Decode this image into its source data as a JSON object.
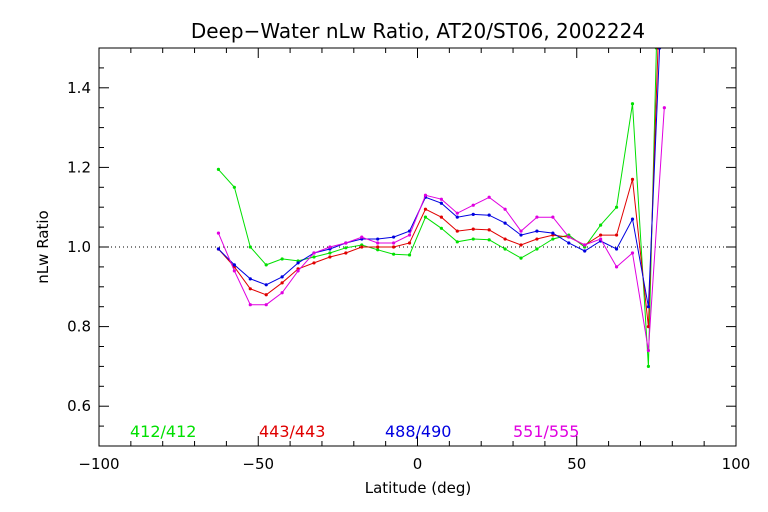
{
  "chart_data": {
    "type": "line",
    "title": "Deep−Water nLw Ratio, AT20/ST06, 2002224",
    "xlabel": "Latitude (deg)",
    "ylabel": "nLw Ratio",
    "xlim": [
      -100,
      100
    ],
    "ylim": [
      0.5,
      1.5
    ],
    "xticks": [
      -100,
      -50,
      0,
      50,
      100
    ],
    "xtick_labels": [
      "−100",
      "−50",
      "0",
      "50",
      "100"
    ],
    "yticks": [
      0.6,
      0.8,
      1.0,
      1.2,
      1.4
    ],
    "ytick_labels": [
      "0.6",
      "0.8",
      "1.0",
      "1.2",
      "1.4"
    ],
    "reference_line": 1.0,
    "grid": false,
    "legend_placement": "bottom",
    "series": [
      {
        "name": "412/412",
        "color": "#00e000",
        "x": [
          -62.5,
          -57.5,
          -52.5,
          -47.5,
          -42.5,
          -37.5,
          -32.5,
          -27.5,
          -22.5,
          -17.5,
          -12.5,
          -7.5,
          -2.5,
          2.5,
          7.5,
          12.5,
          17.5,
          22.5,
          27.5,
          32.5,
          37.5,
          42.5,
          47.5,
          52.5,
          57.5,
          62.5,
          67.5,
          72.5,
          75
        ],
        "y": [
          1.195,
          1.15,
          1.0,
          0.955,
          0.97,
          0.965,
          0.975,
          0.985,
          0.998,
          1.005,
          0.993,
          0.982,
          0.98,
          1.075,
          1.047,
          1.013,
          1.02,
          1.018,
          0.995,
          0.972,
          0.995,
          1.02,
          1.03,
          1.0,
          1.055,
          1.1,
          1.36,
          0.7,
          1.5
        ]
      },
      {
        "name": "443/443",
        "color": "#e00000",
        "x": [
          -62.5,
          -57.5,
          -52.5,
          -47.5,
          -42.5,
          -37.5,
          -32.5,
          -27.5,
          -22.5,
          -17.5,
          -12.5,
          -7.5,
          -2.5,
          2.5,
          7.5,
          12.5,
          17.5,
          22.5,
          27.5,
          32.5,
          37.5,
          42.5,
          47.5,
          52.5,
          57.5,
          62.5,
          67.5,
          72.5,
          75.5
        ],
        "y": [
          0.995,
          0.95,
          0.895,
          0.88,
          0.91,
          0.945,
          0.96,
          0.975,
          0.985,
          1.0,
          1.0,
          1.0,
          1.01,
          1.095,
          1.075,
          1.04,
          1.045,
          1.043,
          1.02,
          1.005,
          1.02,
          1.03,
          1.025,
          1.005,
          1.03,
          1.03,
          1.17,
          0.8,
          1.5
        ]
      },
      {
        "name": "488/490",
        "color": "#0000e0",
        "x": [
          -62.5,
          -57.5,
          -52.5,
          -47.5,
          -42.5,
          -37.5,
          -32.5,
          -27.5,
          -22.5,
          -17.5,
          -12.5,
          -7.5,
          -2.5,
          2.5,
          7.5,
          12.5,
          17.5,
          22.5,
          27.5,
          32.5,
          37.5,
          42.5,
          47.5,
          52.5,
          57.5,
          62.5,
          67.5,
          72.5,
          76
        ],
        "y": [
          0.995,
          0.955,
          0.92,
          0.905,
          0.925,
          0.96,
          0.985,
          0.995,
          1.01,
          1.02,
          1.02,
          1.025,
          1.04,
          1.125,
          1.11,
          1.075,
          1.082,
          1.08,
          1.06,
          1.03,
          1.04,
          1.035,
          1.01,
          0.99,
          1.015,
          0.995,
          1.07,
          0.85,
          1.5
        ]
      },
      {
        "name": "551/555",
        "color": "#e000e0",
        "x": [
          -62.5,
          -57.5,
          -52.5,
          -47.5,
          -42.5,
          -37.5,
          -32.5,
          -27.5,
          -22.5,
          -17.5,
          -12.5,
          -7.5,
          -2.5,
          2.5,
          7.5,
          12.5,
          17.5,
          22.5,
          27.5,
          32.5,
          37.5,
          42.5,
          47.5,
          52.5,
          57.5,
          62.5,
          67.5,
          72.5,
          77.5
        ],
        "y": [
          1.035,
          0.94,
          0.855,
          0.855,
          0.885,
          0.94,
          0.985,
          1.0,
          1.01,
          1.025,
          1.01,
          1.01,
          1.03,
          1.13,
          1.12,
          1.085,
          1.105,
          1.125,
          1.095,
          1.04,
          1.075,
          1.075,
          1.025,
          1.005,
          1.02,
          0.95,
          0.985,
          0.74,
          1.35
        ]
      }
    ]
  }
}
